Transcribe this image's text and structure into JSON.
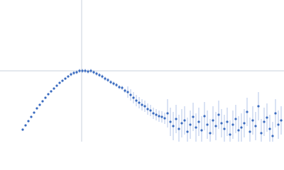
{
  "chart_data": {
    "type": "scatter",
    "x": [
      32,
      36,
      40,
      44,
      48,
      52,
      56,
      60,
      64,
      68,
      72,
      76,
      80,
      84,
      88,
      92,
      96,
      100,
      104,
      108,
      112,
      116,
      120,
      124,
      128,
      132,
      136,
      140,
      144,
      148,
      152,
      156,
      160,
      164,
      168,
      172,
      176,
      180,
      184,
      188,
      192,
      196,
      200,
      204,
      208,
      212,
      216,
      220,
      224,
      228,
      232,
      236,
      240,
      244,
      248,
      252,
      256,
      260,
      264,
      268,
      272,
      276,
      280,
      284,
      288,
      292,
      296,
      300,
      304,
      308,
      312,
      316,
      320,
      324,
      328,
      332,
      336,
      340,
      344,
      348,
      352,
      356,
      360,
      364,
      368,
      372,
      376,
      380,
      384,
      388,
      392,
      396
    ],
    "values": [
      17,
      23,
      29,
      35,
      41,
      47,
      52,
      57,
      62,
      67,
      71,
      75,
      79,
      83,
      86,
      89,
      92,
      95,
      97,
      98,
      100,
      100,
      100,
      99,
      100,
      98,
      96,
      94,
      92,
      89,
      87,
      84,
      82,
      80,
      77,
      76,
      72,
      70,
      66,
      62,
      58,
      55,
      52,
      50,
      46,
      44,
      40,
      38,
      36,
      35,
      33,
      40,
      28,
      22,
      32,
      18,
      26,
      30,
      14,
      24,
      35,
      20,
      28,
      16,
      36,
      24,
      12,
      30,
      22,
      38,
      26,
      18,
      28,
      10,
      24,
      32,
      16,
      20,
      26,
      42,
      14,
      30,
      22,
      50,
      12,
      28,
      34,
      18,
      8,
      40,
      24,
      30
    ],
    "errors": [
      1,
      1,
      1,
      1,
      1,
      1,
      1,
      1,
      1,
      1,
      1,
      1,
      1,
      1,
      1,
      1,
      1,
      3,
      3,
      3,
      3,
      3,
      3,
      3,
      3,
      3,
      3,
      3,
      3,
      3,
      3,
      3,
      3,
      3,
      3,
      3,
      3,
      8,
      8,
      8,
      8,
      8,
      8,
      8,
      8,
      8,
      8,
      8,
      8,
      8,
      8,
      20,
      20,
      20,
      20,
      20,
      20,
      20,
      20,
      20,
      20,
      20,
      20,
      20,
      20,
      20,
      20,
      20,
      20,
      20,
      20,
      20,
      20,
      20,
      20,
      20,
      20,
      20,
      20,
      20,
      20,
      20,
      20,
      20,
      20,
      20,
      20,
      20,
      20,
      20,
      20,
      20
    ],
    "xlim": [
      0,
      400
    ],
    "ylim": [
      0,
      200
    ],
    "reference_lines": {
      "x": 115,
      "y": 100
    },
    "color": "#3a6bbf",
    "error_color": "#b3c6e8",
    "reference_color": "#c8d0dc"
  }
}
